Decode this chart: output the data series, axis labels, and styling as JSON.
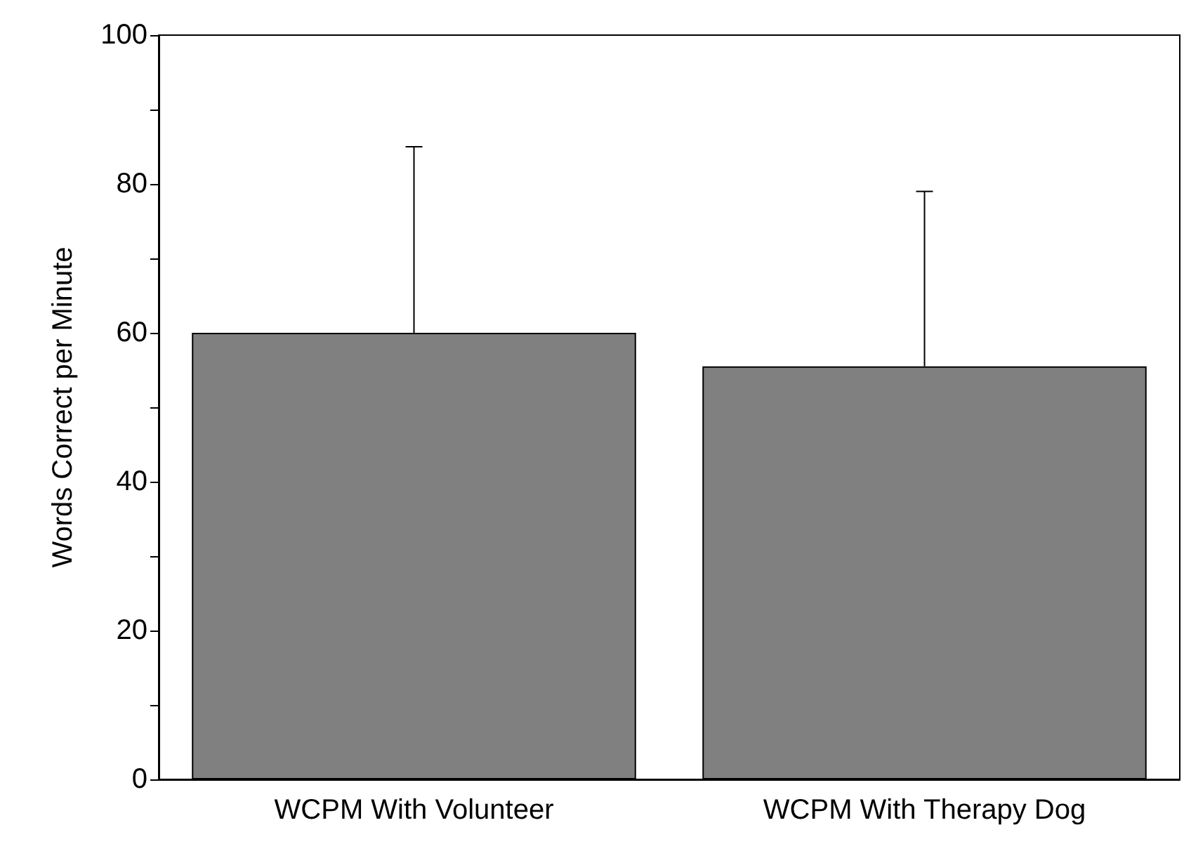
{
  "chart_data": {
    "type": "bar",
    "ylabel": "Words Correct per Minute",
    "categories": [
      "WCPM With Volunteer",
      "WCPM With Therapy Dog"
    ],
    "values": [
      60,
      55.5
    ],
    "errors": [
      25,
      23.5
    ],
    "color": "#808080",
    "ylim": [
      0,
      100
    ],
    "yticks": [
      0,
      {
        "value": 10,
        "label": null
      },
      20,
      {
        "value": 30,
        "label": null
      },
      40,
      {
        "value": 50,
        "label": null
      },
      60,
      {
        "value": 70,
        "label": null
      },
      80,
      {
        "value": 90,
        "label": null
      },
      100
    ],
    "grid": false
  }
}
